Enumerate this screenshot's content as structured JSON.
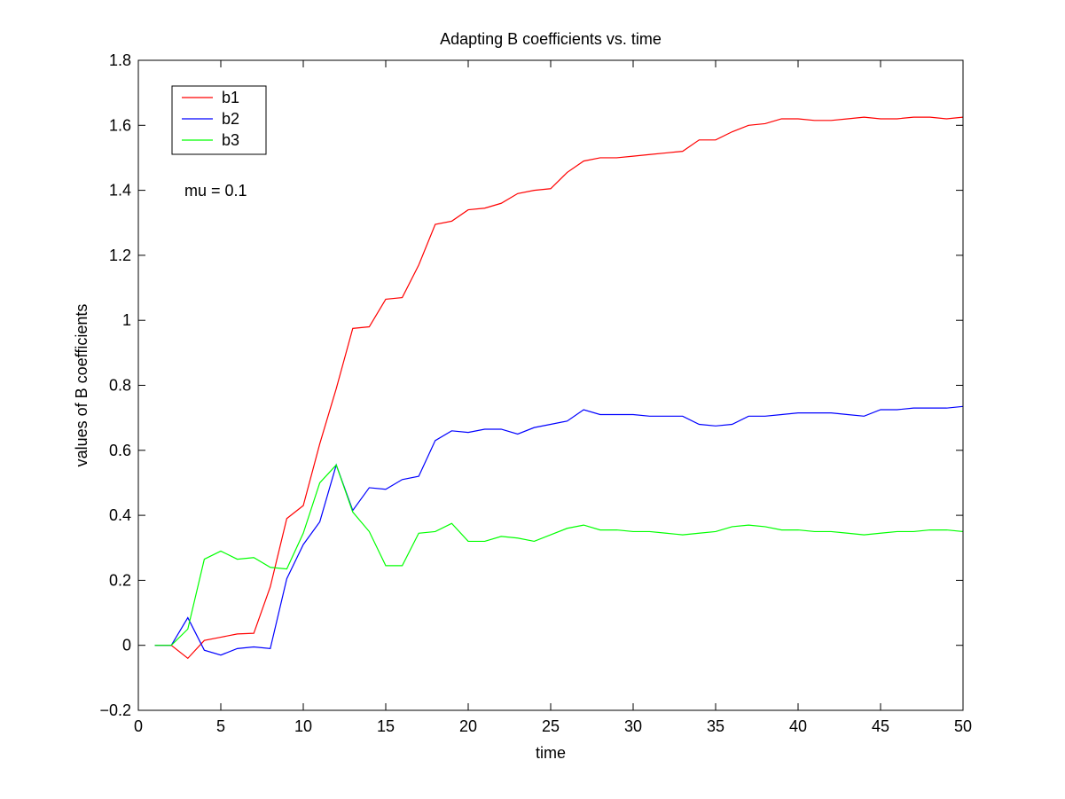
{
  "chart_data": {
    "type": "line",
    "title": "Adapting B coefficients vs. time",
    "xlabel": "time",
    "ylabel": "values of B coefficients",
    "xlim": [
      0,
      50
    ],
    "ylim": [
      -0.2,
      1.8
    ],
    "xticks": [
      0,
      5,
      10,
      15,
      20,
      25,
      30,
      35,
      40,
      45,
      50
    ],
    "yticks": [
      -0.2,
      0,
      0.2,
      0.4,
      0.6,
      0.8,
      1,
      1.2,
      1.4,
      1.6,
      1.8
    ],
    "xtick_labels": [
      "0",
      "5",
      "10",
      "15",
      "20",
      "25",
      "30",
      "35",
      "40",
      "45",
      "50"
    ],
    "ytick_labels": [
      "−0.2",
      "0",
      "0.2",
      "0.4",
      "0.6",
      "0.8",
      "1",
      "1.2",
      "1.4",
      "1.6",
      "1.8"
    ],
    "grid": false,
    "legend_position": "top-left",
    "annotation": "mu = 0.1",
    "x": [
      1,
      2,
      3,
      4,
      5,
      6,
      7,
      8,
      9,
      10,
      11,
      12,
      13,
      14,
      15,
      16,
      17,
      18,
      19,
      20,
      21,
      22,
      23,
      24,
      25,
      26,
      27,
      28,
      29,
      30,
      31,
      32,
      33,
      34,
      35,
      36,
      37,
      38,
      39,
      40,
      41,
      42,
      43,
      44,
      45,
      46,
      47,
      48,
      49,
      50
    ],
    "series": [
      {
        "name": "b1",
        "color": "#ff0000",
        "values": [
          0,
          0,
          -0.04,
          0.015,
          0.025,
          0.035,
          0.037,
          0.18,
          0.39,
          0.43,
          0.62,
          0.79,
          0.975,
          0.98,
          1.065,
          1.07,
          1.17,
          1.295,
          1.305,
          1.34,
          1.345,
          1.36,
          1.39,
          1.4,
          1.405,
          1.455,
          1.49,
          1.5,
          1.5,
          1.505,
          1.51,
          1.515,
          1.52,
          1.555,
          1.555,
          1.58,
          1.6,
          1.605,
          1.62,
          1.62,
          1.615,
          1.615,
          1.62,
          1.625,
          1.62,
          1.62,
          1.625,
          1.625,
          1.62,
          1.625
        ]
      },
      {
        "name": "b2",
        "color": "#0000ff",
        "values": [
          0,
          0,
          0.085,
          -0.015,
          -0.03,
          -0.01,
          -0.005,
          -0.01,
          0.205,
          0.31,
          0.38,
          0.555,
          0.415,
          0.485,
          0.48,
          0.51,
          0.52,
          0.63,
          0.66,
          0.655,
          0.665,
          0.665,
          0.65,
          0.67,
          0.68,
          0.69,
          0.725,
          0.71,
          0.71,
          0.71,
          0.705,
          0.705,
          0.705,
          0.68,
          0.675,
          0.68,
          0.705,
          0.705,
          0.71,
          0.715,
          0.715,
          0.715,
          0.71,
          0.705,
          0.725,
          0.725,
          0.73,
          0.73,
          0.73,
          0.735
        ]
      },
      {
        "name": "b3",
        "color": "#00ff00",
        "values": [
          0,
          0,
          0.05,
          0.265,
          0.29,
          0.265,
          0.27,
          0.24,
          0.235,
          0.345,
          0.5,
          0.555,
          0.41,
          0.35,
          0.245,
          0.245,
          0.345,
          0.35,
          0.375,
          0.32,
          0.32,
          0.335,
          0.33,
          0.32,
          0.34,
          0.36,
          0.37,
          0.355,
          0.355,
          0.35,
          0.35,
          0.345,
          0.34,
          0.345,
          0.35,
          0.365,
          0.37,
          0.365,
          0.355,
          0.355,
          0.35,
          0.35,
          0.345,
          0.34,
          0.345,
          0.35,
          0.35,
          0.355,
          0.355,
          0.35
        ]
      }
    ]
  }
}
